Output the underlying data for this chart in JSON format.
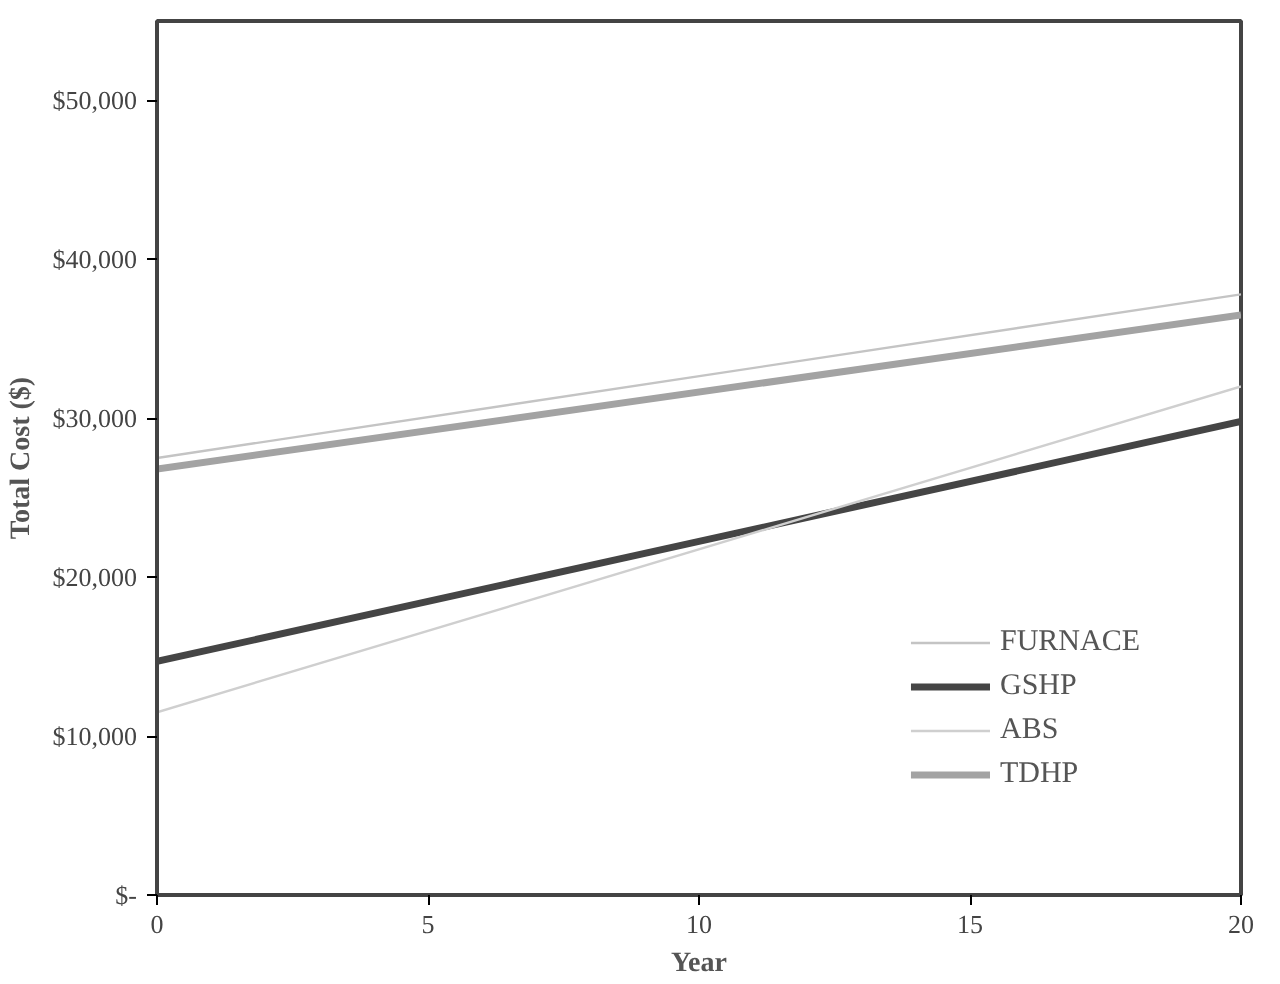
{
  "chart_data": {
    "type": "line",
    "xlabel": "Year",
    "ylabel": "Total Cost ($)",
    "x": [
      0,
      20
    ],
    "series": [
      {
        "name": "FURNACE",
        "color": "#c4c4c4",
        "values": [
          27500,
          37800
        ]
      },
      {
        "name": "GSHP",
        "color": "#454545",
        "values": [
          14700,
          29800
        ]
      },
      {
        "name": "ABS",
        "color": "#cfcfcf",
        "values": [
          11500,
          32000
        ]
      },
      {
        "name": "TDHP",
        "color": "#a3a3a3",
        "values": [
          26800,
          36500
        ]
      }
    ],
    "xlim": [
      0,
      20
    ],
    "xticks": [
      0,
      5,
      10,
      15,
      20
    ],
    "ylim": [
      0,
      55000
    ],
    "yticks": [
      {
        "value": 0,
        "label": "$-"
      },
      {
        "value": 10000,
        "label": "$10,000"
      },
      {
        "value": 20000,
        "label": "$20,000"
      },
      {
        "value": 30000,
        "label": "$30,000"
      },
      {
        "value": 40000,
        "label": "$40,000"
      },
      {
        "value": 50000,
        "label": "$50,000"
      }
    ],
    "grid": false,
    "legend": "bottom right",
    "marker": "none",
    "line_style": "solid"
  }
}
